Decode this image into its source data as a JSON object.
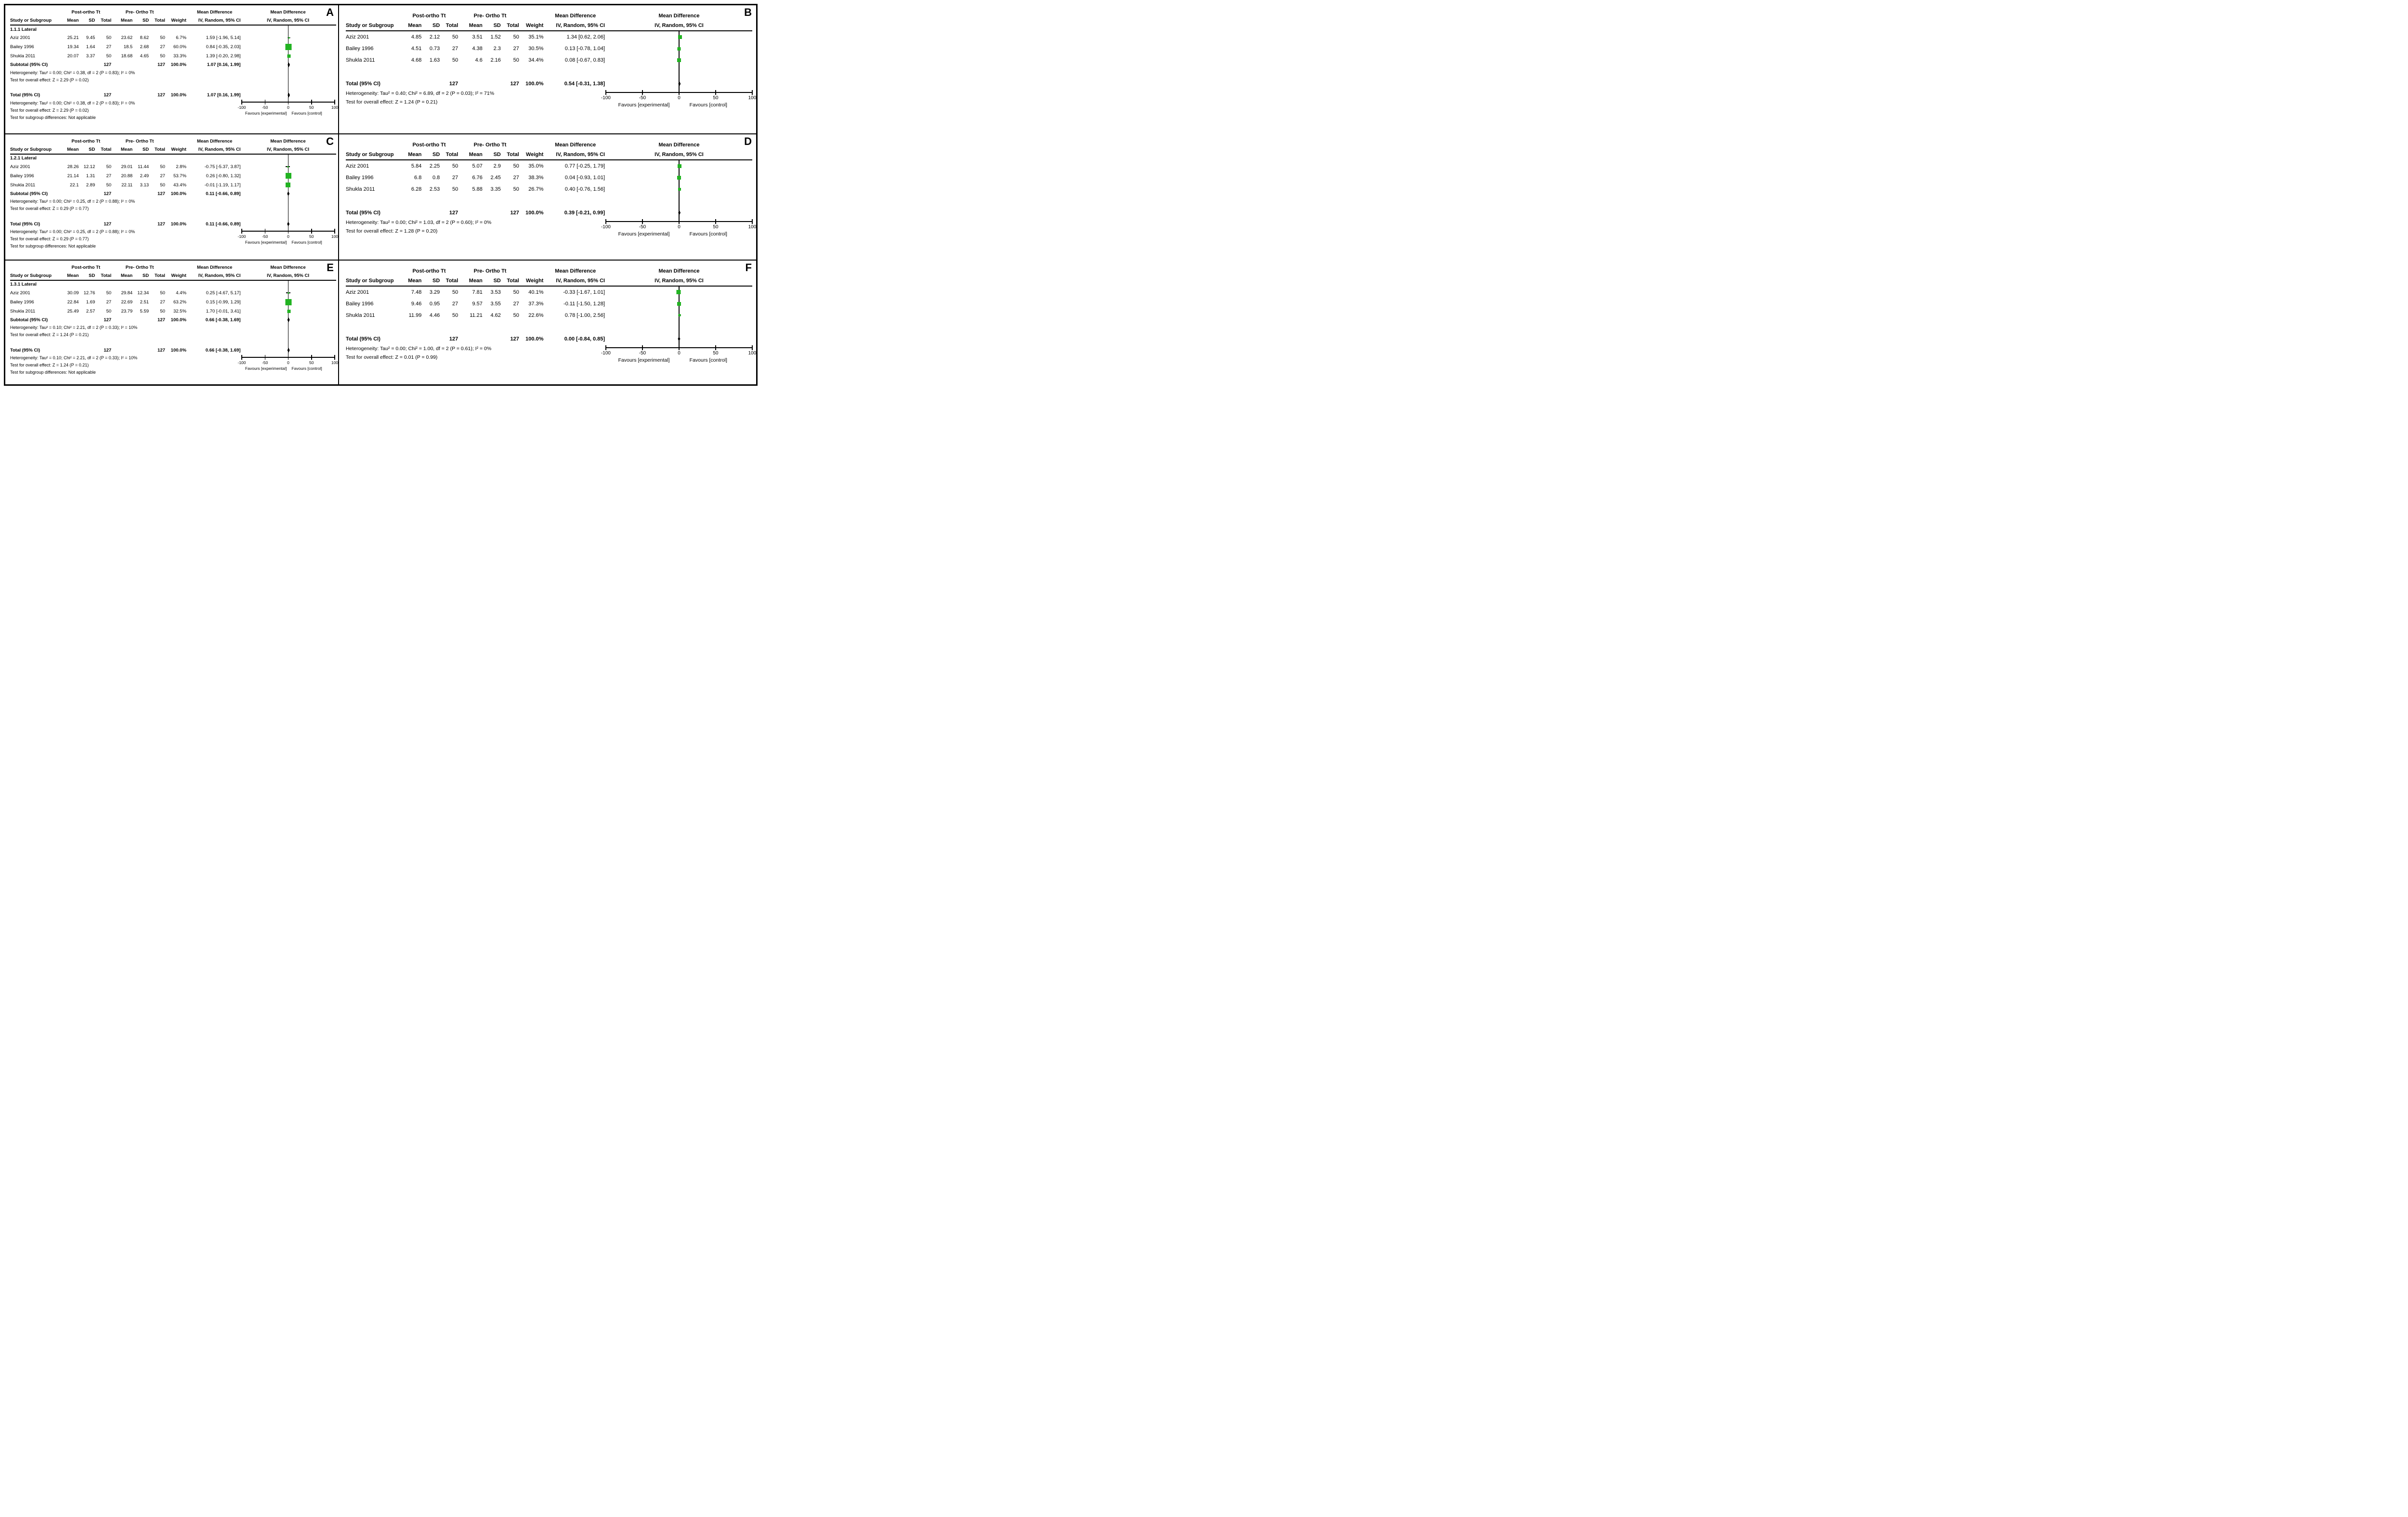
{
  "chart_data": {
    "type": "forest",
    "effect_measure": "Mean Difference",
    "method_label": "IV, Random, 95% CI",
    "groups": {
      "experimental": "Post-ortho Tt",
      "control": "Pre- Ortho Tt"
    },
    "columns": [
      "Study or Subgroup",
      "Mean",
      "SD",
      "Total",
      "Mean",
      "SD",
      "Total",
      "Weight"
    ],
    "axis": {
      "min": -100,
      "max": 100,
      "ticks": [
        -100,
        -50,
        0,
        50,
        100
      ],
      "favours_left": "Favours [experimental]",
      "favours_right": "Favours [control]"
    },
    "marker_color": "#22b322",
    "panels": [
      {
        "letter": "A",
        "side": "left",
        "subgroup_label": "1.1.1 Lateral",
        "studies": [
          {
            "name": "Aziz 2001",
            "mean1": "25.21",
            "sd1": "9.45",
            "total1": "50",
            "mean2": "23.62",
            "sd2": "8.62",
            "total2": "50",
            "weight": "6.7%",
            "ci": "1.59 [-1.96, 5.14]",
            "est": 1.59,
            "lo": -1.96,
            "hi": 5.14
          },
          {
            "name": "Bailey 1996",
            "mean1": "19.34",
            "sd1": "1.64",
            "total1": "27",
            "mean2": "18.5",
            "sd2": "2.68",
            "total2": "27",
            "weight": "60.0%",
            "ci": "0.84 [-0.35, 2.03]",
            "est": 0.84,
            "lo": -0.35,
            "hi": 2.03
          },
          {
            "name": "Shukla 2011",
            "mean1": "20.07",
            "sd1": "3.37",
            "total1": "50",
            "mean2": "18.68",
            "sd2": "4.65",
            "total2": "50",
            "weight": "33.3%",
            "ci": "1.39 [-0.20, 2.98]",
            "est": 1.39,
            "lo": -0.2,
            "hi": 2.98
          }
        ],
        "subtotal": {
          "label": "Subtotal (95% CI)",
          "total1": "127",
          "total2": "127",
          "weight": "100.0%",
          "ci": "1.07 [0.16, 1.99]",
          "est": 1.07,
          "lo": 0.16,
          "hi": 1.99
        },
        "subtotal_notes": [
          "Heterogeneity: Tau² = 0.00; Chi² = 0.38, df = 2 (P = 0.83); I² = 0%",
          "Test for overall effect: Z = 2.29 (P = 0.02)"
        ],
        "total": {
          "label": "Total (95% CI)",
          "total1": "127",
          "total2": "127",
          "weight": "100.0%",
          "ci": "1.07 [0.16, 1.99]",
          "est": 1.07,
          "lo": 0.16,
          "hi": 1.99
        },
        "total_notes": [
          "Heterogeneity: Tau² = 0.00; Chi² = 0.38, df = 2 (P = 0.83); I² = 0%",
          "Test for overall effect: Z = 2.29 (P = 0.02)",
          "Test for subgroup differences: Not applicable"
        ]
      },
      {
        "letter": "B",
        "side": "right",
        "studies": [
          {
            "name": "Aziz 2001",
            "mean1": "4.85",
            "sd1": "2.12",
            "total1": "50",
            "mean2": "3.51",
            "sd2": "1.52",
            "total2": "50",
            "weight": "35.1%",
            "ci": "1.34 [0.62, 2.06]",
            "est": 1.34,
            "lo": 0.62,
            "hi": 2.06
          },
          {
            "name": "Bailey 1996",
            "mean1": "4.51",
            "sd1": "0.73",
            "total1": "27",
            "mean2": "4.38",
            "sd2": "2.3",
            "total2": "27",
            "weight": "30.5%",
            "ci": "0.13 [-0.78, 1.04]",
            "est": 0.13,
            "lo": -0.78,
            "hi": 1.04
          },
          {
            "name": "Shukla 2011",
            "mean1": "4.68",
            "sd1": "1.63",
            "total1": "50",
            "mean2": "4.6",
            "sd2": "2.16",
            "total2": "50",
            "weight": "34.4%",
            "ci": "0.08 [-0.67, 0.83]",
            "est": 0.08,
            "lo": -0.67,
            "hi": 0.83
          }
        ],
        "total": {
          "label": "Total (95% CI)",
          "total1": "127",
          "total2": "127",
          "weight": "100.0%",
          "ci": "0.54 [-0.31, 1.38]",
          "est": 0.54,
          "lo": -0.31,
          "hi": 1.38
        },
        "total_notes": [
          "Heterogeneity: Tau² = 0.40; Chi² = 6.89, df = 2 (P = 0.03); I² = 71%",
          "Test for overall effect: Z = 1.24 (P = 0.21)"
        ]
      },
      {
        "letter": "C",
        "side": "left",
        "subgroup_label": "1.2.1 Lateral",
        "studies": [
          {
            "name": "Aziz 2001",
            "mean1": "28.26",
            "sd1": "12.12",
            "total1": "50",
            "mean2": "29.01",
            "sd2": "11.44",
            "total2": "50",
            "weight": "2.8%",
            "ci": "-0.75 [-5.37, 3.87]",
            "est": -0.75,
            "lo": -5.37,
            "hi": 3.87
          },
          {
            "name": "Bailey 1996",
            "mean1": "21.14",
            "sd1": "1.31",
            "total1": "27",
            "mean2": "20.88",
            "sd2": "2.49",
            "total2": "27",
            "weight": "53.7%",
            "ci": "0.26 [-0.80, 1.32]",
            "est": 0.26,
            "lo": -0.8,
            "hi": 1.32
          },
          {
            "name": "Shukla 2011",
            "mean1": "22.1",
            "sd1": "2.89",
            "total1": "50",
            "mean2": "22.11",
            "sd2": "3.13",
            "total2": "50",
            "weight": "43.4%",
            "ci": "-0.01 [-1.19, 1.17]",
            "est": -0.01,
            "lo": -1.19,
            "hi": 1.17
          }
        ],
        "subtotal": {
          "label": "Subtotal (95% CI)",
          "total1": "127",
          "total2": "127",
          "weight": "100.0%",
          "ci": "0.11 [-0.66, 0.89]",
          "est": 0.11,
          "lo": -0.66,
          "hi": 0.89
        },
        "subtotal_notes": [
          "Heterogeneity: Tau² = 0.00; Chi² = 0.25, df = 2 (P = 0.88); I² = 0%",
          "Test for overall effect: Z = 0.29 (P = 0.77)"
        ],
        "total": {
          "label": "Total (95% CI)",
          "total1": "127",
          "total2": "127",
          "weight": "100.0%",
          "ci": "0.11 [-0.66, 0.89]",
          "est": 0.11,
          "lo": -0.66,
          "hi": 0.89
        },
        "total_notes": [
          "Heterogeneity: Tau² = 0.00; Chi² = 0.25, df = 2 (P = 0.88); I² = 0%",
          "Test for overall effect: Z = 0.29 (P = 0.77)",
          "Test for subgroup differences: Not applicable"
        ]
      },
      {
        "letter": "D",
        "side": "right",
        "studies": [
          {
            "name": "Aziz 2001",
            "mean1": "5.84",
            "sd1": "2.25",
            "total1": "50",
            "mean2": "5.07",
            "sd2": "2.9",
            "total2": "50",
            "weight": "35.0%",
            "ci": "0.77 [-0.25, 1.79]",
            "est": 0.77,
            "lo": -0.25,
            "hi": 1.79
          },
          {
            "name": "Bailey 1996",
            "mean1": "6.8",
            "sd1": "0.8",
            "total1": "27",
            "mean2": "6.76",
            "sd2": "2.45",
            "total2": "27",
            "weight": "38.3%",
            "ci": "0.04 [-0.93, 1.01]",
            "est": 0.04,
            "lo": -0.93,
            "hi": 1.01
          },
          {
            "name": "Shukla 2011",
            "mean1": "6.28",
            "sd1": "2.53",
            "total1": "50",
            "mean2": "5.88",
            "sd2": "3.35",
            "total2": "50",
            "weight": "26.7%",
            "ci": "0.40 [-0.76, 1.56]",
            "est": 0.4,
            "lo": -0.76,
            "hi": 1.56
          }
        ],
        "total": {
          "label": "Total (95% CI)",
          "total1": "127",
          "total2": "127",
          "weight": "100.0%",
          "ci": "0.39 [-0.21, 0.99]",
          "est": 0.39,
          "lo": -0.21,
          "hi": 0.99
        },
        "total_notes": [
          "Heterogeneity: Tau² = 0.00; Chi² = 1.03, df = 2 (P = 0.60); I² = 0%",
          "Test for overall effect: Z = 1.28 (P = 0.20)"
        ]
      },
      {
        "letter": "E",
        "side": "left",
        "subgroup_label": "1.3.1 Lateral",
        "studies": [
          {
            "name": "Aziz 2001",
            "mean1": "30.09",
            "sd1": "12.76",
            "total1": "50",
            "mean2": "29.84",
            "sd2": "12.34",
            "total2": "50",
            "weight": "4.4%",
            "ci": "0.25 [-4.67, 5.17]",
            "est": 0.25,
            "lo": -4.67,
            "hi": 5.17
          },
          {
            "name": "Bailey 1996",
            "mean1": "22.84",
            "sd1": "1.69",
            "total1": "27",
            "mean2": "22.69",
            "sd2": "2.51",
            "total2": "27",
            "weight": "63.2%",
            "ci": "0.15 [-0.99, 1.29]",
            "est": 0.15,
            "lo": -0.99,
            "hi": 1.29
          },
          {
            "name": "Shukla 2011",
            "mean1": "25.49",
            "sd1": "2.57",
            "total1": "50",
            "mean2": "23.79",
            "sd2": "5.59",
            "total2": "50",
            "weight": "32.5%",
            "ci": "1.70 [-0.01, 3.41]",
            "est": 1.7,
            "lo": -0.01,
            "hi": 3.41
          }
        ],
        "subtotal": {
          "label": "Subtotal (95% CI)",
          "total1": "127",
          "total2": "127",
          "weight": "100.0%",
          "ci": "0.66 [-0.38, 1.69]",
          "est": 0.66,
          "lo": -0.38,
          "hi": 1.69
        },
        "subtotal_notes": [
          "Heterogeneity: Tau² = 0.10; Chi² = 2.21, df = 2 (P = 0.33); I² = 10%",
          "Test for overall effect: Z = 1.24 (P = 0.21)"
        ],
        "total": {
          "label": "Total (95% CI)",
          "total1": "127",
          "total2": "127",
          "weight": "100.0%",
          "ci": "0.66 [-0.38, 1.69]",
          "est": 0.66,
          "lo": -0.38,
          "hi": 1.69
        },
        "total_notes": [
          "Heterogeneity: Tau² = 0.10; Chi² = 2.21, df = 2 (P = 0.33); I² = 10%",
          "Test for overall effect: Z = 1.24 (P = 0.21)",
          "Test for subgroup differences: Not applicable"
        ]
      },
      {
        "letter": "F",
        "side": "right",
        "studies": [
          {
            "name": "Aziz 2001",
            "mean1": "7.48",
            "sd1": "3.29",
            "total1": "50",
            "mean2": "7.81",
            "sd2": "3.53",
            "total2": "50",
            "weight": "40.1%",
            "ci": "-0.33 [-1.67, 1.01]",
            "est": -0.33,
            "lo": -1.67,
            "hi": 1.01
          },
          {
            "name": "Bailey 1996",
            "mean1": "9.46",
            "sd1": "0.95",
            "total1": "27",
            "mean2": "9.57",
            "sd2": "3.55",
            "total2": "27",
            "weight": "37.3%",
            "ci": "-0.11 [-1.50, 1.28]",
            "est": -0.11,
            "lo": -1.5,
            "hi": 1.28
          },
          {
            "name": "Shukla 2011",
            "mean1": "11.99",
            "sd1": "4.46",
            "total1": "50",
            "mean2": "11.21",
            "sd2": "4.62",
            "total2": "50",
            "weight": "22.6%",
            "ci": "0.78 [-1.00, 2.56]",
            "est": 0.78,
            "lo": -1.0,
            "hi": 2.56
          }
        ],
        "total": {
          "label": "Total (95% CI)",
          "total1": "127",
          "total2": "127",
          "weight": "100.0%",
          "ci": "0.00 [-0.84, 0.85]",
          "est": 0.0,
          "lo": -0.84,
          "hi": 0.85
        },
        "total_notes": [
          "Heterogeneity: Tau² = 0.00; Chi² = 1.00, df = 2 (P = 0.61); I² = 0%",
          "Test for overall effect: Z = 0.01 (P = 0.99)"
        ]
      }
    ]
  }
}
